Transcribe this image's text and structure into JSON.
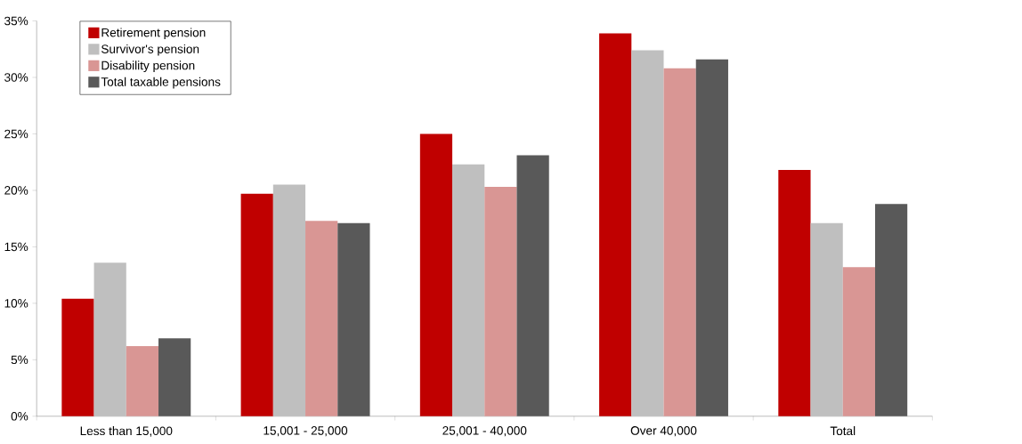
{
  "chart_data": {
    "type": "bar",
    "categories": [
      "Less than 15,000",
      "15,001 - 25,000",
      "25,001 - 40,000",
      "Over 40,000",
      "Total"
    ],
    "series": [
      {
        "name": "Retirement pension",
        "color": "#c00000",
        "values": [
          10.4,
          19.7,
          25.0,
          33.9,
          21.8
        ]
      },
      {
        "name": "Survivor's pension",
        "color": "#bfbfbf",
        "values": [
          13.6,
          20.5,
          22.3,
          32.4,
          17.1
        ]
      },
      {
        "name": "Disability  pension",
        "color": "#d99694",
        "values": [
          6.2,
          17.3,
          20.3,
          30.8,
          13.2
        ]
      },
      {
        "name": "Total taxable pensions",
        "color": "#595959",
        "values": [
          6.9,
          17.1,
          23.1,
          31.6,
          18.8
        ]
      }
    ],
    "ylim": [
      0,
      35
    ],
    "yticks": [
      {
        "value": 0,
        "label": "0%"
      },
      {
        "value": 5,
        "label": "5%"
      },
      {
        "value": 10,
        "label": "10%"
      },
      {
        "value": 15,
        "label": "15%"
      },
      {
        "value": 20,
        "label": "20%"
      },
      {
        "value": 25,
        "label": "25%"
      },
      {
        "value": 30,
        "label": "30%"
      },
      {
        "value": 35,
        "label": "35%"
      }
    ],
    "grid": false,
    "legend": "top left"
  }
}
